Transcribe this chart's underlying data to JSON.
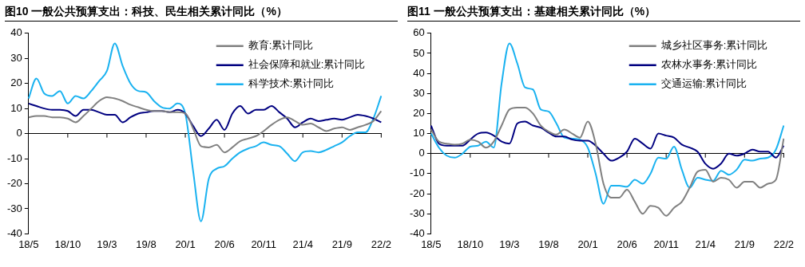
{
  "chart_data": [
    {
      "type": "line",
      "title": "图10 一般公共预算支出：科技、民生相关累计同比（%）",
      "categories": [
        "18/5",
        null,
        null,
        null,
        null,
        "18/10",
        null,
        null,
        null,
        null,
        "19/3",
        null,
        null,
        null,
        null,
        "19/8",
        null,
        null,
        null,
        null,
        "20/1",
        null,
        null,
        null,
        null,
        "20/6",
        null,
        null,
        null,
        null,
        "20/11",
        null,
        null,
        null,
        null,
        "21/4",
        null,
        null,
        null,
        null,
        "21/9",
        null,
        null,
        null,
        null,
        "22/2"
      ],
      "series": [
        {
          "name": "教育:累计同比",
          "color": "#808080",
          "values": [
            6.5,
            7,
            7,
            6.5,
            6.5,
            6,
            4.5,
            7,
            10,
            13,
            14.5,
            14,
            13,
            11.5,
            10.5,
            9.5,
            9,
            9,
            8.5,
            8.5,
            8,
            2,
            -5,
            -5.5,
            -4.5,
            -7.5,
            -5.5,
            -3,
            -2,
            -1,
            1,
            3.5,
            5.5,
            6.5,
            5,
            3.5,
            4,
            2.5,
            1,
            2,
            2.5,
            1.5,
            2.5,
            3.5,
            5,
            9
          ]
        },
        {
          "name": "社会保障和就业:累计同比",
          "color": "#000080",
          "values": [
            12,
            11,
            10,
            9.5,
            9.5,
            9,
            7,
            9.5,
            9.5,
            8.5,
            7.5,
            7.5,
            4.5,
            6.5,
            8,
            8.5,
            9,
            9,
            8.5,
            9.5,
            8,
            3,
            -1,
            2,
            5.5,
            1.5,
            8,
            11,
            8,
            9.5,
            9.5,
            11,
            8.5,
            6,
            2.5,
            4.5,
            6,
            5,
            5.5,
            6,
            5.5,
            6.5,
            7.5,
            7,
            6,
            4.5
          ]
        },
        {
          "name": "科学技术:累计同比",
          "color": "#1ab2f0",
          "values": [
            14,
            22,
            16,
            15,
            17,
            12,
            15,
            14,
            17,
            21,
            25,
            36,
            27,
            20,
            17,
            16.5,
            13,
            10.5,
            10,
            12,
            8,
            -15,
            -35,
            -18,
            -14,
            -13,
            -10,
            -7.5,
            -6,
            -5,
            -3.5,
            -4.5,
            -5,
            -8,
            -11,
            -7.5,
            -7,
            -7.5,
            -6.5,
            -5,
            -3.5,
            -1,
            0.5,
            0.5,
            6,
            15
          ]
        }
      ],
      "ylim": [
        -40,
        40
      ],
      "yticks": [
        -40,
        -30,
        -20,
        -10,
        0,
        10,
        20,
        30,
        40
      ],
      "legend": "top right"
    },
    {
      "type": "line",
      "title": "图11 一般公共预算支出：基建相关累计同比（%）",
      "categories": [
        "18/5",
        null,
        null,
        null,
        null,
        "18/10",
        null,
        null,
        null,
        null,
        "19/3",
        null,
        null,
        null,
        null,
        "19/8",
        null,
        null,
        null,
        null,
        "20/1",
        null,
        null,
        null,
        null,
        "20/6",
        null,
        null,
        null,
        null,
        "20/11",
        null,
        null,
        null,
        null,
        "21/4",
        null,
        null,
        null,
        null,
        "21/9",
        null,
        null,
        null,
        null,
        "22/2"
      ],
      "series": [
        {
          "name": "城乡社区事务:累计同比",
          "color": "#808080",
          "values": [
            12,
            6,
            5,
            4.5,
            5,
            7,
            6,
            3,
            6,
            14,
            22,
            23,
            23,
            20,
            14,
            11,
            9.5,
            12,
            10,
            8,
            16,
            5,
            -15,
            -22,
            -22,
            -18,
            -24,
            -30,
            -26,
            -27,
            -31,
            -27,
            -24,
            -17,
            -9,
            -8,
            -14,
            -12,
            -13,
            -17,
            -14,
            -14,
            -17,
            -15,
            -13,
            7.5
          ]
        },
        {
          "name": "农林水事务:累计同比",
          "color": "#000080",
          "values": [
            14,
            5,
            4,
            4,
            4,
            7,
            10,
            10.5,
            9,
            6,
            5,
            15,
            16,
            14,
            13,
            10.5,
            8.5,
            8.5,
            7,
            6.5,
            6.5,
            4,
            0,
            -3.5,
            -2,
            1,
            7.5,
            5,
            2.5,
            10,
            9,
            8,
            4.5,
            3,
            1,
            -5,
            -7.5,
            -5,
            0,
            -1,
            0,
            2,
            1,
            1,
            -2,
            4
          ]
        },
        {
          "name": "交通运输:累计同比",
          "color": "#1ab2f0",
          "values": [
            10,
            3,
            -1,
            -2,
            0,
            3.5,
            4,
            6,
            3,
            35,
            55,
            45,
            33,
            32,
            22,
            21,
            15,
            8,
            7.5,
            7,
            3,
            -10,
            -25,
            -16,
            -16,
            -16.5,
            -13,
            -15,
            -10,
            -2,
            -2.5,
            3.5,
            -8,
            -17,
            -12,
            -13,
            -13.5,
            -8.5,
            -10.5,
            -8,
            -3,
            -3.5,
            -2.5,
            -2,
            2,
            14
          ]
        }
      ],
      "ylim": [
        -40,
        60
      ],
      "yticks": [
        -40,
        -30,
        -20,
        -10,
        0,
        10,
        20,
        30,
        40,
        50,
        60
      ],
      "legend": "top right"
    }
  ]
}
